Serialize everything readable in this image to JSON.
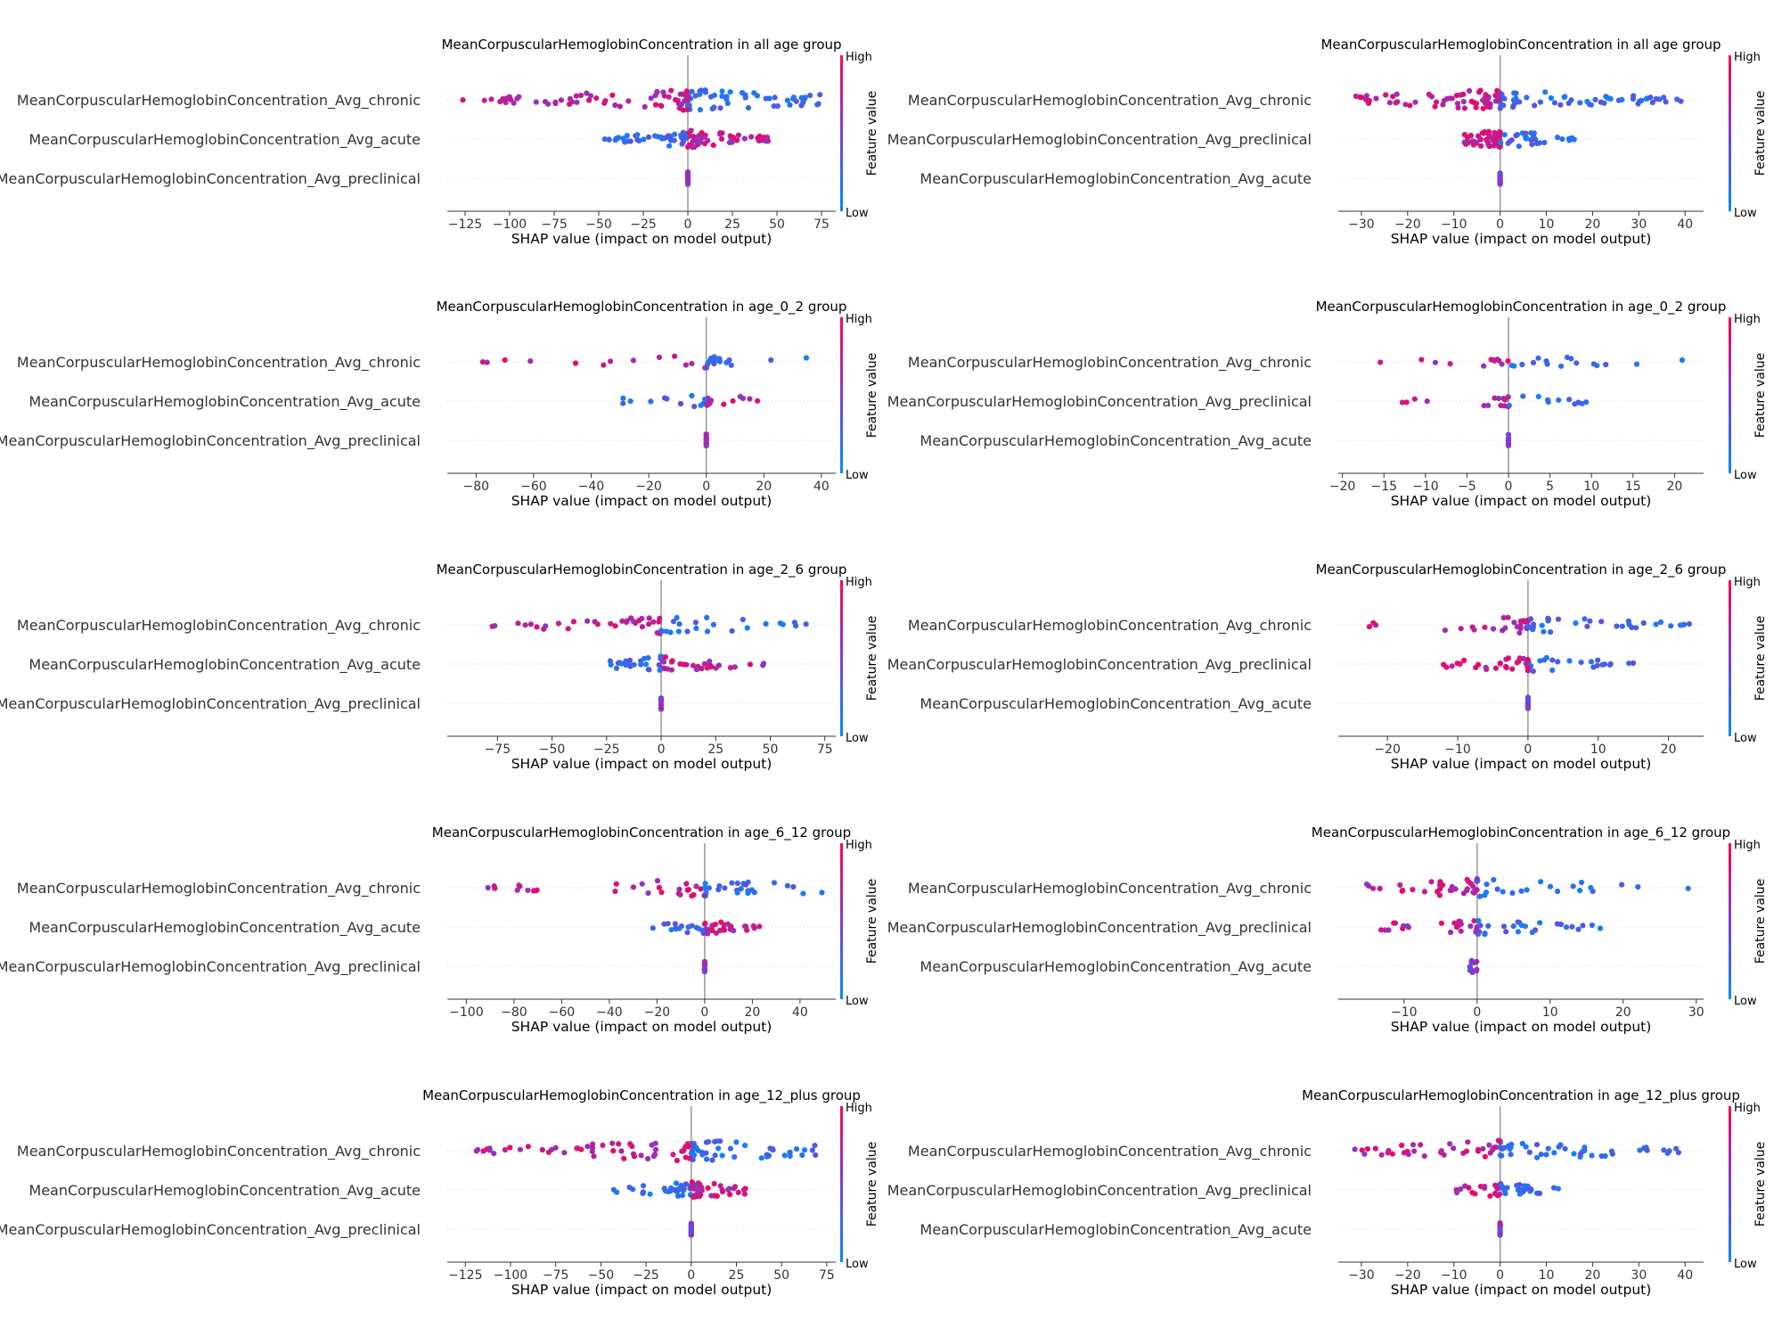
{
  "figure": {
    "colorbar_high": "High",
    "colorbar_low": "Low",
    "colorbar_label": "Feature value",
    "colors": {
      "low": "#008bfb",
      "mid": "#7a3fd6",
      "high": "#ff0052",
      "zero_line": "#999999"
    }
  },
  "chart_data": [
    {
      "type": "scatter",
      "title": "MeanCorpuscularHemoglobinConcentration in all age group",
      "xlabel": "SHAP value (impact on model output)",
      "features": [
        "MeanCorpuscularHemoglobinConcentration_Avg_chronic",
        "MeanCorpuscularHemoglobinConcentration_Avg_acute",
        "MeanCorpuscularHemoglobinConcentration_Avg_preclinical"
      ],
      "xlim": [
        -135,
        83
      ],
      "xticks": [
        -125,
        -100,
        -75,
        -50,
        -25,
        0,
        25,
        50,
        75
      ],
      "xtick_labels": [
        "−125",
        "−100",
        "−75",
        "−50",
        "−25",
        "0",
        "25",
        "50",
        "75"
      ],
      "series": [
        {
          "shap_range": [
            -127,
            75
          ],
          "points": 120,
          "spread": 1.0,
          "low_side": "positive"
        },
        {
          "shap_range": [
            -48,
            47
          ],
          "points": 90,
          "spread": 0.8,
          "low_side": "negative"
        },
        {
          "shap_range": [
            0,
            0
          ],
          "points": 25,
          "spread": 0.0,
          "low_side": "none"
        }
      ]
    },
    {
      "type": "scatter",
      "title": "MeanCorpuscularHemoglobinConcentration in all age group",
      "xlabel": "SHAP value (impact on model output)",
      "features": [
        "MeanCorpuscularHemoglobinConcentration_Avg_chronic",
        "MeanCorpuscularHemoglobinConcentration_Avg_preclinical",
        "MeanCorpuscularHemoglobinConcentration_Avg_acute"
      ],
      "xlim": [
        -35,
        44
      ],
      "xticks": [
        -30,
        -20,
        -10,
        0,
        10,
        20,
        30,
        40
      ],
      "xtick_labels": [
        "−30",
        "−20",
        "−10",
        "0",
        "10",
        "20",
        "30",
        "40"
      ],
      "series": [
        {
          "shap_range": [
            -32,
            40
          ],
          "points": 120,
          "spread": 1.0,
          "low_side": "positive"
        },
        {
          "shap_range": [
            -8,
            17
          ],
          "points": 80,
          "spread": 0.8,
          "low_side": "positive"
        },
        {
          "shap_range": [
            0,
            0
          ],
          "points": 20,
          "spread": 0.0,
          "low_side": "none"
        }
      ]
    },
    {
      "type": "scatter",
      "title": "MeanCorpuscularHemoglobinConcentration in age_0_2 group",
      "xlabel": "SHAP value (impact on model output)",
      "features": [
        "MeanCorpuscularHemoglobinConcentration_Avg_chronic",
        "MeanCorpuscularHemoglobinConcentration_Avg_acute",
        "MeanCorpuscularHemoglobinConcentration_Avg_preclinical"
      ],
      "xlim": [
        -90,
        45
      ],
      "xticks": [
        -80,
        -60,
        -40,
        -20,
        0,
        20,
        40
      ],
      "xtick_labels": [
        "−80",
        "−60",
        "−40",
        "−20",
        "0",
        "20",
        "40"
      ],
      "series": [
        {
          "shap_range": [
            -85,
            40
          ],
          "points": 30,
          "spread": 0.5,
          "low_side": "positive"
        },
        {
          "shap_range": [
            -42,
            24
          ],
          "points": 25,
          "spread": 0.5,
          "low_side": "negative"
        },
        {
          "shap_range": [
            0,
            0
          ],
          "points": 12,
          "spread": 0.0,
          "low_side": "none"
        }
      ]
    },
    {
      "type": "scatter",
      "title": "MeanCorpuscularHemoglobinConcentration in age_0_2 group",
      "xlabel": "SHAP value (impact on model output)",
      "features": [
        "MeanCorpuscularHemoglobinConcentration_Avg_chronic",
        "MeanCorpuscularHemoglobinConcentration_Avg_preclinical",
        "MeanCorpuscularHemoglobinConcentration_Avg_acute"
      ],
      "xlim": [
        -20.5,
        23.5
      ],
      "xticks": [
        -20,
        -15,
        -10,
        -5,
        0,
        5,
        10,
        15,
        20
      ],
      "xtick_labels": [
        "−20",
        "−15",
        "−10",
        "−5",
        "0",
        "5",
        "10",
        "15",
        "20"
      ],
      "series": [
        {
          "shap_range": [
            -18,
            22
          ],
          "points": 28,
          "spread": 0.5,
          "low_side": "positive"
        },
        {
          "shap_range": [
            -13,
            12
          ],
          "points": 25,
          "spread": 0.5,
          "low_side": "positive"
        },
        {
          "shap_range": [
            0,
            0
          ],
          "points": 10,
          "spread": 0.0,
          "low_side": "none"
        }
      ]
    },
    {
      "type": "scatter",
      "title": "MeanCorpuscularHemoglobinConcentration in age_2_6 group",
      "xlabel": "SHAP value (impact on model output)",
      "features": [
        "MeanCorpuscularHemoglobinConcentration_Avg_chronic",
        "MeanCorpuscularHemoglobinConcentration_Avg_acute",
        "MeanCorpuscularHemoglobinConcentration_Avg_preclinical"
      ],
      "xlim": [
        -98,
        80
      ],
      "xticks": [
        -75,
        -50,
        -25,
        0,
        25,
        50,
        75
      ],
      "xtick_labels": [
        "−75",
        "−50",
        "−25",
        "0",
        "25",
        "50",
        "75"
      ],
      "series": [
        {
          "shap_range": [
            -90,
            75
          ],
          "points": 55,
          "spread": 0.8,
          "low_side": "positive"
        },
        {
          "shap_range": [
            -28,
            47
          ],
          "points": 55,
          "spread": 0.7,
          "low_side": "negative"
        },
        {
          "shap_range": [
            0,
            0
          ],
          "points": 12,
          "spread": 0.0,
          "low_side": "none"
        }
      ]
    },
    {
      "type": "scatter",
      "title": "MeanCorpuscularHemoglobinConcentration in age_2_6 group",
      "xlabel": "SHAP value (impact on model output)",
      "features": [
        "MeanCorpuscularHemoglobinConcentration_Avg_chronic",
        "MeanCorpuscularHemoglobinConcentration_Avg_preclinical",
        "MeanCorpuscularHemoglobinConcentration_Avg_acute"
      ],
      "xlim": [
        -27,
        25
      ],
      "xticks": [
        -20,
        -10,
        0,
        10,
        20
      ],
      "xtick_labels": [
        "−20",
        "−10",
        "0",
        "10",
        "20"
      ],
      "series": [
        {
          "shap_range": [
            -25,
            23
          ],
          "points": 60,
          "spread": 0.8,
          "low_side": "positive"
        },
        {
          "shap_range": [
            -13,
            15
          ],
          "points": 50,
          "spread": 0.7,
          "low_side": "positive"
        },
        {
          "shap_range": [
            0,
            0
          ],
          "points": 12,
          "spread": 0.0,
          "low_side": "none"
        }
      ]
    },
    {
      "type": "scatter",
      "title": "MeanCorpuscularHemoglobinConcentration in age_6_12 group",
      "xlabel": "SHAP value (impact on model output)",
      "features": [
        "MeanCorpuscularHemoglobinConcentration_Avg_chronic",
        "MeanCorpuscularHemoglobinConcentration_Avg_acute",
        "MeanCorpuscularHemoglobinConcentration_Avg_preclinical"
      ],
      "xlim": [
        -108,
        55
      ],
      "xticks": [
        -100,
        -80,
        -60,
        -40,
        -20,
        0,
        20,
        40
      ],
      "xtick_labels": [
        "−100",
        "−80",
        "−60",
        "−40",
        "−20",
        "0",
        "20",
        "40"
      ],
      "series": [
        {
          "shap_range": [
            -102,
            50
          ],
          "points": 55,
          "spread": 0.8,
          "low_side": "positive"
        },
        {
          "shap_range": [
            -22,
            25
          ],
          "points": 45,
          "spread": 0.6,
          "low_side": "negative"
        },
        {
          "shap_range": [
            0,
            0
          ],
          "points": 12,
          "spread": 0.0,
          "low_side": "none"
        }
      ]
    },
    {
      "type": "scatter",
      "title": "MeanCorpuscularHemoglobinConcentration in age_6_12 group",
      "xlabel": "SHAP value (impact on model output)",
      "features": [
        "MeanCorpuscularHemoglobinConcentration_Avg_chronic",
        "MeanCorpuscularHemoglobinConcentration_Avg_preclinical",
        "MeanCorpuscularHemoglobinConcentration_Avg_acute"
      ],
      "xlim": [
        -19,
        31
      ],
      "xticks": [
        -10,
        0,
        10,
        20,
        30
      ],
      "xtick_labels": [
        "−10",
        "0",
        "10",
        "20",
        "30"
      ],
      "series": [
        {
          "shap_range": [
            -17,
            29
          ],
          "points": 55,
          "spread": 0.8,
          "low_side": "positive"
        },
        {
          "shap_range": [
            -14,
            18
          ],
          "points": 50,
          "spread": 0.7,
          "low_side": "positive"
        },
        {
          "shap_range": [
            -1,
            0
          ],
          "points": 12,
          "spread": 0.0,
          "low_side": "none"
        }
      ]
    },
    {
      "type": "scatter",
      "title": "MeanCorpuscularHemoglobinConcentration in age_12_plus group",
      "xlabel": "SHAP value (impact on model output)",
      "features": [
        "MeanCorpuscularHemoglobinConcentration_Avg_chronic",
        "MeanCorpuscularHemoglobinConcentration_Avg_acute",
        "MeanCorpuscularHemoglobinConcentration_Avg_preclinical"
      ],
      "xlim": [
        -135,
        80
      ],
      "xticks": [
        -125,
        -100,
        -75,
        -50,
        -25,
        0,
        25,
        50,
        75
      ],
      "xtick_labels": [
        "−125",
        "−100",
        "−75",
        "−50",
        "−25",
        "0",
        "25",
        "50",
        "75"
      ],
      "series": [
        {
          "shap_range": [
            -127,
            72
          ],
          "points": 100,
          "spread": 1.0,
          "low_side": "positive"
        },
        {
          "shap_range": [
            -48,
            32
          ],
          "points": 70,
          "spread": 0.7,
          "low_side": "negative"
        },
        {
          "shap_range": [
            0,
            0
          ],
          "points": 15,
          "spread": 0.0,
          "low_side": "none"
        }
      ]
    },
    {
      "type": "scatter",
      "title": "MeanCorpuscularHemoglobinConcentration in age_12_plus group",
      "xlabel": "SHAP value (impact on model output)",
      "features": [
        "MeanCorpuscularHemoglobinConcentration_Avg_chronic",
        "MeanCorpuscularHemoglobinConcentration_Avg_preclinical",
        "MeanCorpuscularHemoglobinConcentration_Avg_acute"
      ],
      "xlim": [
        -35,
        44
      ],
      "xticks": [
        -30,
        -20,
        -10,
        0,
        10,
        20,
        30,
        40
      ],
      "xtick_labels": [
        "−30",
        "−20",
        "−10",
        "0",
        "10",
        "20",
        "30",
        "40"
      ],
      "series": [
        {
          "shap_range": [
            -32,
            40
          ],
          "points": 80,
          "spread": 1.0,
          "low_side": "positive"
        },
        {
          "shap_range": [
            -10,
            13
          ],
          "points": 45,
          "spread": 0.6,
          "low_side": "positive"
        },
        {
          "shap_range": [
            0,
            0
          ],
          "points": 12,
          "spread": 0.0,
          "low_side": "none"
        }
      ]
    }
  ]
}
